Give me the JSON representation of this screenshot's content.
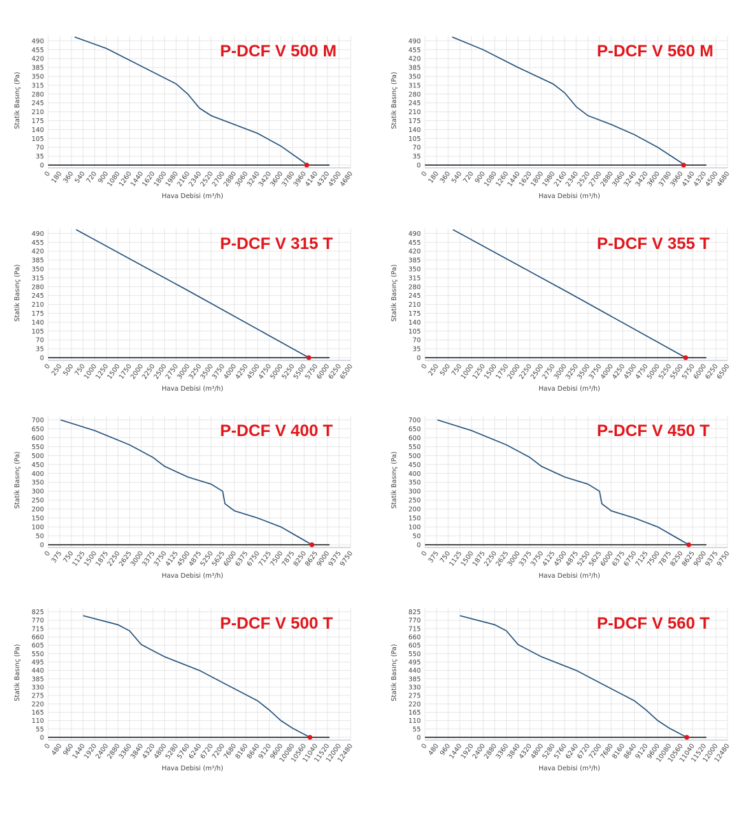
{
  "chart_data": [
    {
      "type": "line",
      "title": "P-DCF V 500 M",
      "x_label": "Hava Debisi (m³/h)",
      "y_label": "Statik Basınç (Pa)",
      "color": "#1f4e79",
      "x": [
        410,
        900,
        1440,
        1980,
        2160,
        2340,
        2520,
        2880,
        3240,
        3600,
        3960,
        4000
      ],
      "values": [
        505,
        460,
        390,
        320,
        280,
        225,
        195,
        160,
        125,
        75,
        10,
        0
      ],
      "xlim": [
        0,
        4680
      ],
      "ylim": [
        0,
        510
      ],
      "xticks": [
        0,
        180,
        360,
        540,
        720,
        900,
        1080,
        1260,
        1440,
        1620,
        1800,
        1980,
        2160,
        2340,
        2520,
        2700,
        2880,
        3060,
        3240,
        3420,
        3600,
        3780,
        3960,
        4140,
        4320,
        4500,
        4680
      ],
      "yticks": [
        0,
        35,
        70,
        105,
        140,
        175,
        210,
        245,
        280,
        315,
        350,
        385,
        420,
        455,
        490
      ],
      "grid": true
    },
    {
      "type": "line",
      "title": "P-DCF V 560 M",
      "x_label": "Hava Debisi (m³/h)",
      "y_label": "Statik Basınç (Pa)",
      "color": "#1f4e79",
      "x": [
        420,
        900,
        1440,
        1980,
        2160,
        2340,
        2520,
        2880,
        3240,
        3600,
        3960,
        4000
      ],
      "values": [
        505,
        455,
        385,
        320,
        285,
        230,
        195,
        160,
        120,
        70,
        10,
        0
      ],
      "xlim": [
        0,
        4680
      ],
      "ylim": [
        0,
        510
      ],
      "xticks": [
        0,
        180,
        360,
        540,
        720,
        900,
        1080,
        1260,
        1440,
        1620,
        1800,
        1980,
        2160,
        2340,
        2520,
        2700,
        2880,
        3060,
        3240,
        3420,
        3600,
        3780,
        3960,
        4140,
        4320,
        4500,
        4680
      ],
      "yticks": [
        0,
        35,
        70,
        105,
        140,
        175,
        210,
        245,
        280,
        315,
        350,
        385,
        420,
        455,
        490
      ],
      "grid": true
    },
    {
      "type": "line",
      "title": "P-DCF V 315 T",
      "x_label": "Hava Debisi (m³/h)",
      "y_label": "Statik Basınç (Pa)",
      "color": "#1f4e79",
      "x": [
        600,
        3100,
        5600
      ],
      "values": [
        505,
        255,
        0
      ],
      "xlim": [
        0,
        6500
      ],
      "ylim": [
        0,
        510
      ],
      "xticks": [
        0,
        250,
        500,
        750,
        1000,
        1250,
        1500,
        1750,
        2000,
        2250,
        2500,
        2750,
        3000,
        3250,
        3500,
        3750,
        4000,
        4250,
        4500,
        4750,
        5000,
        5250,
        5500,
        5750,
        6000,
        6250,
        6500
      ],
      "yticks": [
        0,
        35,
        70,
        105,
        140,
        175,
        210,
        245,
        280,
        315,
        350,
        385,
        420,
        455,
        490
      ],
      "grid": true
    },
    {
      "type": "line",
      "title": "P-DCF V 355 T",
      "x_label": "Hava Debisi (m³/h)",
      "y_label": "Statik Basınç (Pa)",
      "color": "#1f4e79",
      "x": [
        600,
        3100,
        5600
      ],
      "values": [
        505,
        255,
        0
      ],
      "xlim": [
        0,
        6500
      ],
      "ylim": [
        0,
        510
      ],
      "xticks": [
        0,
        250,
        500,
        750,
        1000,
        1250,
        1500,
        1750,
        2000,
        2250,
        2500,
        2750,
        3000,
        3250,
        3500,
        3750,
        4000,
        4250,
        4500,
        4750,
        5000,
        5250,
        5500,
        5750,
        6000,
        6250,
        6500
      ],
      "yticks": [
        0,
        35,
        70,
        105,
        140,
        175,
        210,
        245,
        280,
        315,
        350,
        385,
        420,
        455,
        490
      ],
      "grid": true
    },
    {
      "type": "line",
      "title": "P-DCF V 400 T",
      "x_label": "Hava Debisi (m³/h)",
      "y_label": "Statik Basınç (Pa)",
      "color": "#1f4e79",
      "x": [
        400,
        1500,
        2625,
        3375,
        3750,
        4500,
        5250,
        5625,
        5700,
        6000,
        6750,
        7500,
        8000,
        8500
      ],
      "values": [
        700,
        640,
        560,
        490,
        440,
        380,
        340,
        300,
        230,
        190,
        150,
        100,
        50,
        0
      ],
      "xlim": [
        0,
        9750
      ],
      "ylim": [
        0,
        725
      ],
      "xticks": [
        0,
        375,
        750,
        1125,
        1500,
        1875,
        2250,
        2625,
        3000,
        3375,
        3750,
        4125,
        4500,
        4875,
        5250,
        5625,
        6000,
        6375,
        6750,
        7125,
        7500,
        7875,
        8250,
        8625,
        9000,
        9375,
        9750
      ],
      "yticks": [
        0,
        50,
        100,
        150,
        200,
        250,
        300,
        350,
        400,
        450,
        500,
        550,
        600,
        650,
        700
      ],
      "grid": true
    },
    {
      "type": "line",
      "title": "P-DCF V 450 T",
      "x_label": "Hava Debisi (m³/h)",
      "y_label": "Statik Basınç (Pa)",
      "color": "#1f4e79",
      "x": [
        400,
        1500,
        2625,
        3375,
        3750,
        4500,
        5250,
        5625,
        5700,
        6000,
        6750,
        7500,
        8000,
        8500
      ],
      "values": [
        700,
        640,
        560,
        490,
        440,
        380,
        340,
        300,
        230,
        190,
        150,
        100,
        50,
        0
      ],
      "xlim": [
        0,
        9750
      ],
      "ylim": [
        0,
        725
      ],
      "xticks": [
        0,
        375,
        750,
        1125,
        1500,
        1875,
        2250,
        2625,
        3000,
        3375,
        3750,
        4125,
        4500,
        4875,
        5250,
        5625,
        6000,
        6375,
        6750,
        7125,
        7500,
        7875,
        8250,
        8625,
        9000,
        9375,
        9750
      ],
      "yticks": [
        0,
        50,
        100,
        150,
        200,
        250,
        300,
        350,
        400,
        450,
        500,
        550,
        600,
        650,
        700
      ],
      "grid": true
    },
    {
      "type": "line",
      "title": "P-DCF V 500 T",
      "x_label": "Hava Debisi (m³/h)",
      "y_label": "Statik Basınç (Pa)",
      "color": "#1f4e79",
      "x": [
        1440,
        2880,
        3360,
        3840,
        4800,
        6240,
        7200,
        8160,
        8640,
        9120,
        9600,
        10080,
        10560,
        10800
      ],
      "values": [
        800,
        740,
        700,
        610,
        530,
        440,
        360,
        280,
        240,
        180,
        110,
        60,
        20,
        0
      ],
      "xlim": [
        0,
        12480
      ],
      "ylim": [
        0,
        850
      ],
      "xticks": [
        0,
        480,
        960,
        1440,
        1920,
        2400,
        2880,
        3360,
        3840,
        4320,
        4800,
        5280,
        5760,
        6240,
        6720,
        7200,
        7680,
        8160,
        8640,
        9120,
        9600,
        10080,
        10560,
        11040,
        11520,
        12000,
        12480
      ],
      "yticks": [
        0,
        55,
        110,
        165,
        220,
        275,
        330,
        385,
        440,
        495,
        550,
        605,
        660,
        715,
        770,
        825
      ],
      "grid": true
    },
    {
      "type": "line",
      "title": "P-DCF V 560 T",
      "x_label": "Hava Debisi (m³/h)",
      "y_label": "Statik Basınç (Pa)",
      "color": "#1f4e79",
      "x": [
        1440,
        2880,
        3360,
        3840,
        4800,
        6240,
        7200,
        8160,
        8640,
        9120,
        9600,
        10080,
        10560,
        10800
      ],
      "values": [
        800,
        740,
        700,
        610,
        530,
        440,
        360,
        280,
        240,
        180,
        110,
        60,
        20,
        0
      ],
      "xlim": [
        0,
        12480
      ],
      "ylim": [
        0,
        850
      ],
      "xticks": [
        0,
        480,
        960,
        1440,
        1920,
        2400,
        2880,
        3360,
        3840,
        4320,
        4800,
        5280,
        5760,
        6240,
        6720,
        7200,
        7680,
        8160,
        8640,
        9120,
        9600,
        10080,
        10560,
        11040,
        11520,
        12000,
        12480
      ],
      "yticks": [
        0,
        55,
        110,
        165,
        220,
        275,
        330,
        385,
        440,
        495,
        550,
        605,
        660,
        715,
        770,
        825
      ],
      "grid": true
    }
  ]
}
